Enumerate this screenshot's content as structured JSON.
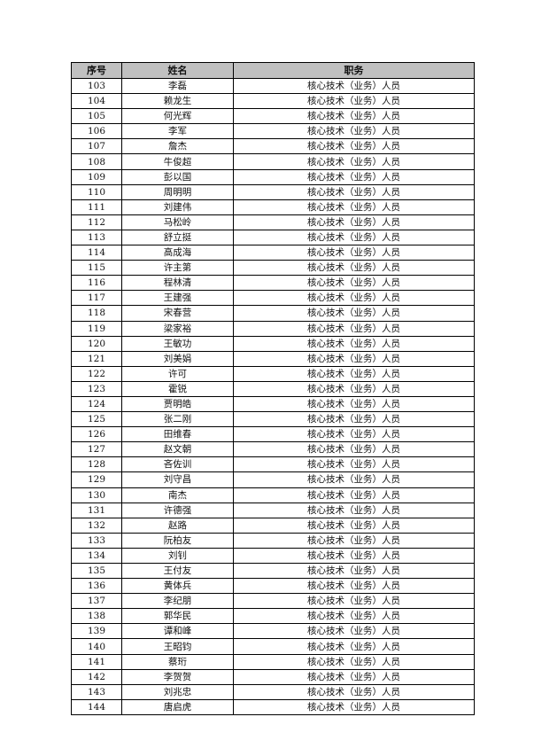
{
  "table": {
    "headers": [
      "序号",
      "姓名",
      "职务"
    ],
    "rows": [
      [
        "103",
        "李磊",
        "核心技术（业务）人员"
      ],
      [
        "104",
        "赖龙生",
        "核心技术（业务）人员"
      ],
      [
        "105",
        "何光辉",
        "核心技术（业务）人员"
      ],
      [
        "106",
        "李军",
        "核心技术（业务）人员"
      ],
      [
        "107",
        "詹杰",
        "核心技术（业务）人员"
      ],
      [
        "108",
        "牛俊超",
        "核心技术（业务）人员"
      ],
      [
        "109",
        "彭以国",
        "核心技术（业务）人员"
      ],
      [
        "110",
        "周明明",
        "核心技术（业务）人员"
      ],
      [
        "111",
        "刘建伟",
        "核心技术（业务）人员"
      ],
      [
        "112",
        "马松岭",
        "核心技术（业务）人员"
      ],
      [
        "113",
        "舒立挺",
        "核心技术（业务）人员"
      ],
      [
        "114",
        "高成海",
        "核心技术（业务）人员"
      ],
      [
        "115",
        "许主第",
        "核心技术（业务）人员"
      ],
      [
        "116",
        "程林清",
        "核心技术（业务）人员"
      ],
      [
        "117",
        "王建强",
        "核心技术（业务）人员"
      ],
      [
        "118",
        "宋春营",
        "核心技术（业务）人员"
      ],
      [
        "119",
        "梁家裕",
        "核心技术（业务）人员"
      ],
      [
        "120",
        "王敏功",
        "核心技术（业务）人员"
      ],
      [
        "121",
        "刘美娟",
        "核心技术（业务）人员"
      ],
      [
        "122",
        "许可",
        "核心技术（业务）人员"
      ],
      [
        "123",
        "霍锐",
        "核心技术（业务）人员"
      ],
      [
        "124",
        "贾明皓",
        "核心技术（业务）人员"
      ],
      [
        "125",
        "张二刚",
        "核心技术（业务）人员"
      ],
      [
        "126",
        "田维春",
        "核心技术（业务）人员"
      ],
      [
        "127",
        "赵文朝",
        "核心技术（业务）人员"
      ],
      [
        "128",
        "吝佐训",
        "核心技术（业务）人员"
      ],
      [
        "129",
        "刘守昌",
        "核心技术（业务）人员"
      ],
      [
        "130",
        "南杰",
        "核心技术（业务）人员"
      ],
      [
        "131",
        "许德强",
        "核心技术（业务）人员"
      ],
      [
        "132",
        "赵路",
        "核心技术（业务）人员"
      ],
      [
        "133",
        "阮柏友",
        "核心技术（业务）人员"
      ],
      [
        "134",
        "刘钊",
        "核心技术（业务）人员"
      ],
      [
        "135",
        "王付友",
        "核心技术（业务）人员"
      ],
      [
        "136",
        "黄体兵",
        "核心技术（业务）人员"
      ],
      [
        "137",
        "李纪朋",
        "核心技术（业务）人员"
      ],
      [
        "138",
        "郭华民",
        "核心技术（业务）人员"
      ],
      [
        "139",
        "谭和峰",
        "核心技术（业务）人员"
      ],
      [
        "140",
        "王昭钧",
        "核心技术（业务）人员"
      ],
      [
        "141",
        "蔡珩",
        "核心技术（业务）人员"
      ],
      [
        "142",
        "李贺贺",
        "核心技术（业务）人员"
      ],
      [
        "143",
        "刘兆忠",
        "核心技术（业务）人员"
      ],
      [
        "144",
        "唐启虎",
        "核心技术（业务）人员"
      ]
    ]
  }
}
